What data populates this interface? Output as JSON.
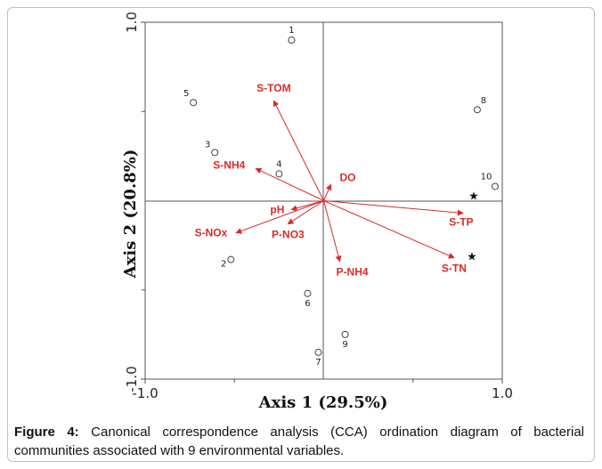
{
  "chart_data": {
    "type": "scatter",
    "subtype": "cca-biplot",
    "xlabel": "Axis 1 (29.5%)",
    "ylabel": "Axis 2 (20.8%)",
    "xlim": [
      -1.0,
      1.0
    ],
    "ylim": [
      -1.0,
      1.0
    ],
    "x_ticks": [
      {
        "value": -1.0,
        "label": "-1.0"
      },
      {
        "value": 1.0,
        "label": "1.0"
      }
    ],
    "y_ticks": [
      {
        "value": 1.0,
        "label": "1.0"
      },
      {
        "value": -1.0,
        "label": "-1.0"
      }
    ],
    "reference_lines": {
      "x": 0,
      "y": 0
    },
    "sites": [
      {
        "label": "1",
        "x": -0.18,
        "y": 0.9,
        "marker": "circle"
      },
      {
        "label": "2",
        "x": -0.52,
        "y": -0.33,
        "marker": "circle"
      },
      {
        "label": "3",
        "x": -0.61,
        "y": 0.27,
        "marker": "circle"
      },
      {
        "label": "4",
        "x": -0.25,
        "y": 0.15,
        "marker": "circle"
      },
      {
        "label": "5",
        "x": -0.73,
        "y": 0.55,
        "marker": "circle"
      },
      {
        "label": "6",
        "x": -0.09,
        "y": -0.52,
        "marker": "circle"
      },
      {
        "label": "7",
        "x": -0.03,
        "y": -0.85,
        "marker": "circle"
      },
      {
        "label": "8",
        "x": 0.86,
        "y": 0.51,
        "marker": "circle"
      },
      {
        "label": "9",
        "x": 0.12,
        "y": -0.75,
        "marker": "circle"
      },
      {
        "label": "10",
        "x": 0.96,
        "y": 0.08,
        "marker": "circle"
      }
    ],
    "stars": [
      {
        "x": 0.84,
        "y": 0.03
      },
      {
        "x": 0.83,
        "y": -0.31
      }
    ],
    "arrows": [
      {
        "name": "S-TOM",
        "x": -0.28,
        "y": 0.56
      },
      {
        "name": "S-NH4",
        "x": -0.38,
        "y": 0.18
      },
      {
        "name": "DO",
        "x": 0.04,
        "y": 0.09
      },
      {
        "name": "pH",
        "x": -0.18,
        "y": -0.05
      },
      {
        "name": "S-NOx",
        "x": -0.49,
        "y": -0.18
      },
      {
        "name": "P-NO3",
        "x": -0.2,
        "y": -0.13
      },
      {
        "name": "P-NH4",
        "x": 0.09,
        "y": -0.34
      },
      {
        "name": "S-TP",
        "x": 0.78,
        "y": -0.07
      },
      {
        "name": "S-TN",
        "x": 0.73,
        "y": -0.32
      }
    ],
    "colors": {
      "arrow": "#d92b2b",
      "label": "#d92b2b",
      "axis": "#333333"
    }
  },
  "caption": {
    "bold": "Figure 4:",
    "text": " Canonical correspondence analysis (CCA) ordination diagram of bacterial communities associated with 9 environmental variables."
  }
}
